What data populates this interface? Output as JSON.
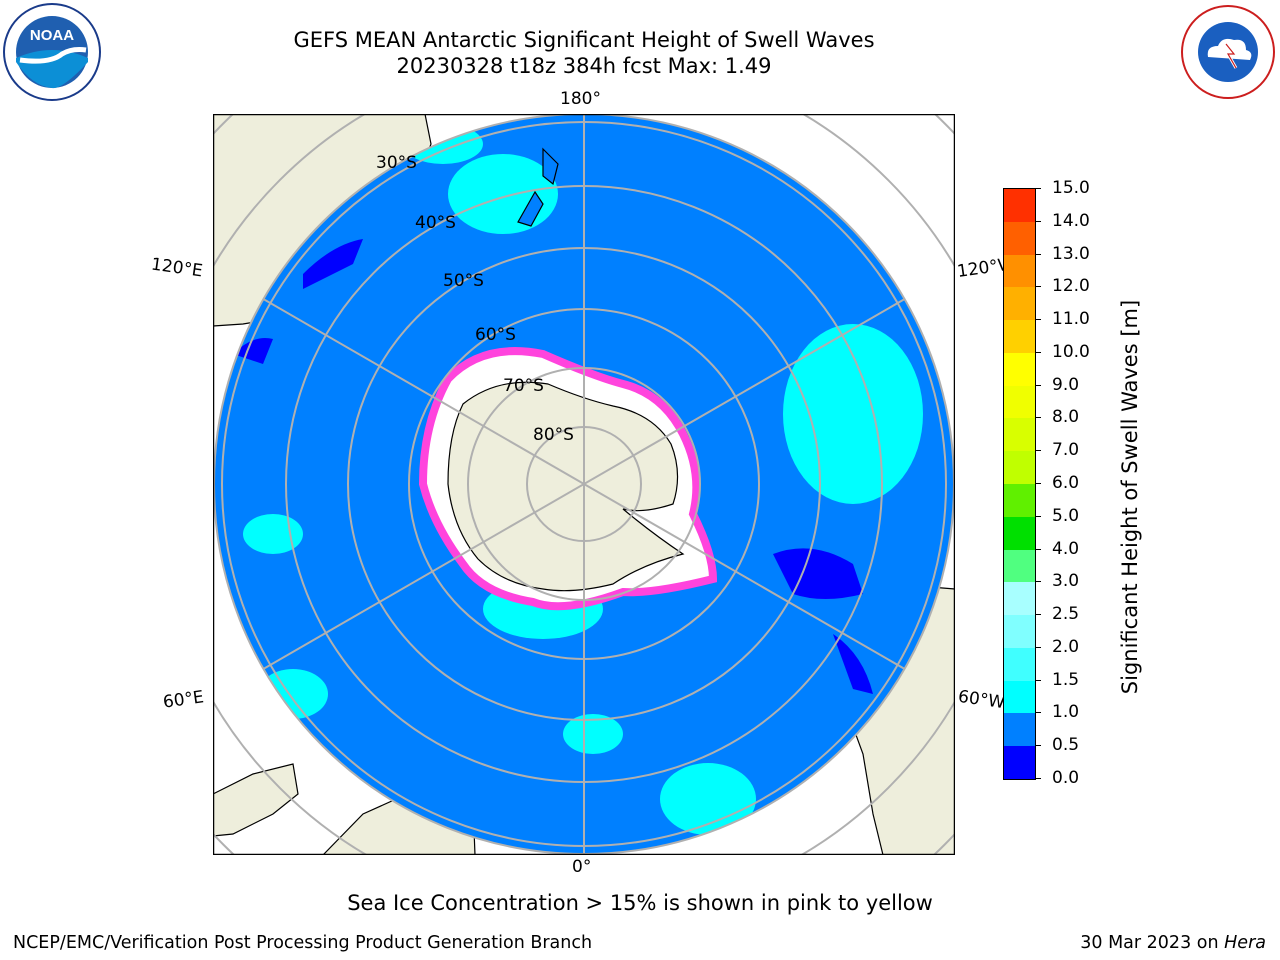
{
  "title_line1": "GEFS MEAN Antarctic Significant Height of Swell Waves",
  "title_line2": "20230328 t18z 384h fcst   Max: 1.49",
  "note": "Sea Ice Concentration > 15% is shown in pink to yellow",
  "footer": {
    "left": "NCEP/EMC/Verification Post Processing Product Generation Branch",
    "date": "30 Mar 2023 on",
    "machine": "Hera"
  },
  "logos": {
    "noaa": {
      "text": "NOAA",
      "ring_text": "NATIONAL OCEANIC AND ATMOSPHERIC ADMINISTRATION · U.S. DEPARTMENT OF COMMERCE ·"
    },
    "nws": {
      "ring_text": "NATIONAL WEATHER SERVICE"
    }
  },
  "map": {
    "projection": "south polar stereographic",
    "lon_labels": {
      "top": "180°",
      "bottom": "0°",
      "upper_left": "120°E",
      "lower_left": "60°E",
      "upper_right": "120°W",
      "lower_right": "60°W"
    },
    "lat_labels": [
      "30°S",
      "40°S",
      "50°S",
      "60°S",
      "70°S",
      "80°S"
    ],
    "colors": {
      "ocean_swell_0_5_1_0": "#0080ff",
      "swell_0_0_0_5": "#0000ff",
      "swell_1_0_1_5": "#00ffff",
      "land": "#eeeedc",
      "sea_ice_edge": "#ff44dd",
      "sea_ice_interior": "#ffffff",
      "gridline": "#b0b0b0"
    }
  },
  "colorbar": {
    "label": "Significant Height of Swell Waves [m]",
    "ticks": [
      "0.0",
      "0.5",
      "1.0",
      "1.5",
      "2.0",
      "2.5",
      "3.0",
      "4.0",
      "5.0",
      "6.0",
      "7.0",
      "8.0",
      "9.0",
      "10.0",
      "11.0",
      "12.0",
      "13.0",
      "14.0",
      "15.0"
    ],
    "colors": [
      "#0000ff",
      "#0080ff",
      "#00ffff",
      "#40ffff",
      "#80ffff",
      "#a8ffff",
      "#50ff80",
      "#00e000",
      "#60f000",
      "#c0ff00",
      "#d8ff00",
      "#f0ff00",
      "#ffff00",
      "#ffd000",
      "#ffb000",
      "#ff9000",
      "#ff6000",
      "#ff3000"
    ]
  }
}
